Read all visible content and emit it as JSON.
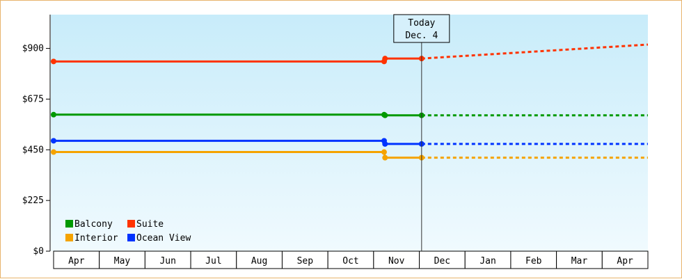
{
  "chart_data": {
    "type": "line",
    "x_categories": [
      "Apr",
      "May",
      "Jun",
      "Jul",
      "Aug",
      "Sep",
      "Oct",
      "Nov",
      "Dec",
      "Jan",
      "Feb",
      "Mar",
      "Apr"
    ],
    "y_ticks": [
      "$0",
      "$225",
      "$450",
      "$675",
      "$900"
    ],
    "ylim": [
      0,
      1050
    ],
    "today_marker": {
      "label_line1": "Today",
      "label_line2": "Dec. 4",
      "x": 8.05
    },
    "grid": false,
    "legend_placement": "bottom-left",
    "series": [
      {
        "name": "Suite",
        "color": "#ff3300",
        "points": [
          [
            0,
            842
          ],
          [
            7.23,
            842
          ],
          [
            7.25,
            855
          ],
          [
            8.05,
            855
          ]
        ],
        "projection": [
          [
            8.05,
            855
          ],
          [
            13,
            917
          ]
        ]
      },
      {
        "name": "Balcony",
        "color": "#009900",
        "points": [
          [
            0,
            606
          ],
          [
            7.23,
            606
          ],
          [
            7.25,
            603
          ],
          [
            8.05,
            603
          ]
        ],
        "projection": [
          [
            8.05,
            603
          ],
          [
            13,
            603
          ]
        ]
      },
      {
        "name": "Ocean View",
        "color": "#0033ff",
        "points": [
          [
            0,
            490
          ],
          [
            7.23,
            490
          ],
          [
            7.25,
            476
          ],
          [
            8.05,
            476
          ]
        ],
        "projection": [
          [
            8.05,
            476
          ],
          [
            13,
            476
          ]
        ]
      },
      {
        "name": "Interior",
        "color": "#f5a300",
        "points": [
          [
            0,
            440
          ],
          [
            7.23,
            440
          ],
          [
            7.25,
            415
          ],
          [
            8.05,
            415
          ]
        ],
        "projection": [
          [
            8.05,
            415
          ],
          [
            13,
            415
          ]
        ]
      }
    ],
    "legend": [
      {
        "name": "Balcony",
        "color": "#009900"
      },
      {
        "name": "Suite",
        "color": "#ff3300"
      },
      {
        "name": "Interior",
        "color": "#f5a300"
      },
      {
        "name": "Ocean View",
        "color": "#0033ff"
      }
    ]
  }
}
